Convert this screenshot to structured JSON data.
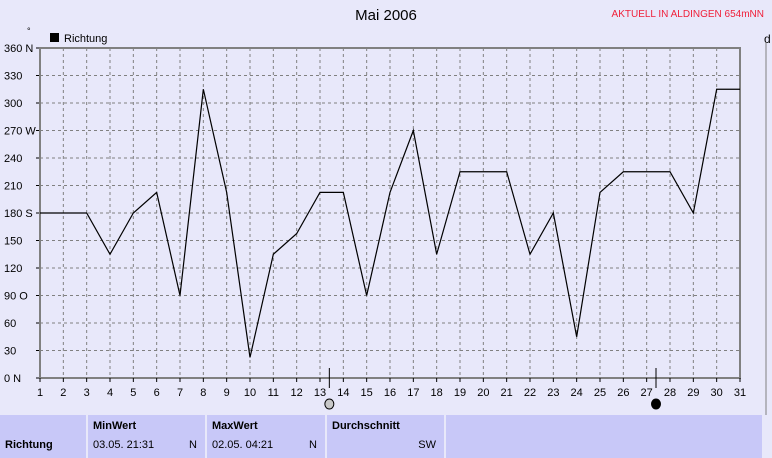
{
  "title": "Mai 2006",
  "notice": "AKTUELL IN ALDINGEN 654mNN",
  "right_chart_label": "d",
  "colors": {
    "background": "#e8e8fa",
    "panel": "#c8c8f8",
    "notice": "#f0203a",
    "line": "#000000",
    "grid": "#808080"
  },
  "chart_data": {
    "type": "line",
    "title": "Mai 2006",
    "ylabel": "°",
    "legend": "Richtung",
    "legend_position": "top-left",
    "grid": true,
    "xlim": [
      1,
      31
    ],
    "ylim": [
      0,
      360
    ],
    "x_ticks": [
      "1",
      "2",
      "3",
      "4",
      "5",
      "6",
      "7",
      "8",
      "9",
      "10",
      "11",
      "12",
      "13",
      "14",
      "15",
      "16",
      "17",
      "18",
      "19",
      "20",
      "21",
      "22",
      "23",
      "24",
      "25",
      "26",
      "27",
      "28",
      "29",
      "30",
      "31"
    ],
    "y_ticks": [
      {
        "v": 0,
        "label": "0  N"
      },
      {
        "v": 30,
        "label": "30"
      },
      {
        "v": 60,
        "label": "60"
      },
      {
        "v": 90,
        "label": "90  O"
      },
      {
        "v": 120,
        "label": "120"
      },
      {
        "v": 150,
        "label": "150"
      },
      {
        "v": 180,
        "label": "180 S"
      },
      {
        "v": 210,
        "label": "210"
      },
      {
        "v": 240,
        "label": "240"
      },
      {
        "v": 270,
        "label": "270 W"
      },
      {
        "v": 300,
        "label": "300"
      },
      {
        "v": 330,
        "label": "330"
      },
      {
        "v": 360,
        "label": "360 N"
      }
    ],
    "series": [
      {
        "name": "Richtung",
        "x": [
          1,
          2,
          3,
          4,
          5,
          6,
          7,
          8,
          9,
          10,
          11,
          12,
          13,
          14,
          15,
          16,
          17,
          18,
          19,
          20,
          21,
          22,
          23,
          24,
          25,
          26,
          27,
          28,
          29,
          30,
          31
        ],
        "values": [
          180,
          180,
          180,
          135,
          180,
          202.5,
          90,
          315,
          202.5,
          22.5,
          135,
          157.5,
          202.5,
          202.5,
          90,
          202.5,
          270,
          135,
          225,
          225,
          225,
          135,
          180,
          45,
          202.5,
          225,
          225,
          225,
          180,
          315,
          315
        ]
      }
    ],
    "moon_phases": [
      {
        "day": 13.4,
        "phase": "full-moon"
      },
      {
        "day": 27.4,
        "phase": "new-moon"
      }
    ]
  },
  "table": {
    "row_label": "Richtung",
    "min": {
      "header": "MinWert",
      "time": "03.05.  21:31",
      "dir": "N"
    },
    "max": {
      "header": "MaxWert",
      "time": "02.05.  04:21",
      "dir": "N"
    },
    "avg": {
      "header": "Durchschnitt",
      "dir": "SW"
    }
  }
}
